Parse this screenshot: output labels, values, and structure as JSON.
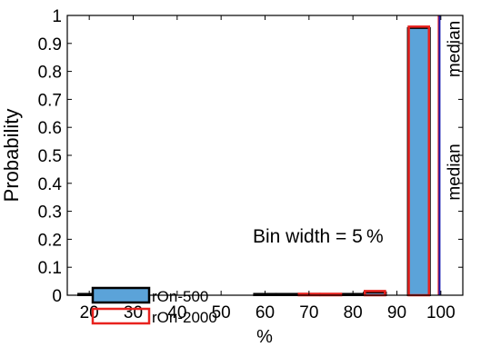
{
  "chart_data": {
    "type": "bar",
    "title": "",
    "xlabel": "%",
    "ylabel": "Probability",
    "xlim": [
      15,
      105
    ],
    "ylim": [
      0,
      1
    ],
    "x_ticks": [
      20,
      30,
      40,
      50,
      60,
      70,
      80,
      90,
      100
    ],
    "y_ticks": [
      0,
      0.1,
      0.2,
      0.3,
      0.4,
      0.5,
      0.6,
      0.7,
      0.8,
      0.9,
      1
    ],
    "bin_width": 5,
    "bin_centers": [
      20,
      25,
      30,
      35,
      40,
      45,
      50,
      55,
      60,
      65,
      70,
      75,
      80,
      85,
      90,
      95,
      100
    ],
    "series": [
      {
        "name": "rOn-500",
        "fill": "#5ba3d9",
        "edge": "#000000",
        "values": [
          0.005,
          0,
          0,
          0,
          0,
          0,
          0,
          0,
          0.005,
          0.005,
          0.005,
          0,
          0.005,
          0.01,
          0,
          0.955,
          0
        ]
      },
      {
        "name": "rOn-2000",
        "fill": "none",
        "edge": "#e8221e",
        "values": [
          0,
          0,
          0.005,
          0,
          0,
          0,
          0,
          0,
          0,
          0,
          0.005,
          0.005,
          0,
          0.015,
          0,
          0.96,
          0
        ]
      }
    ],
    "annotations": {
      "bin_width_text": "Bin width = 5 %",
      "median_500_text": "median",
      "median_500_x": 99.5,
      "median_500_color": "#1a1ab0",
      "median_2000_text": "median",
      "median_2000_x": 99.5,
      "median_2000_color": "#e8221e"
    },
    "legend": {
      "placement": "lower-left"
    },
    "grid": false
  }
}
